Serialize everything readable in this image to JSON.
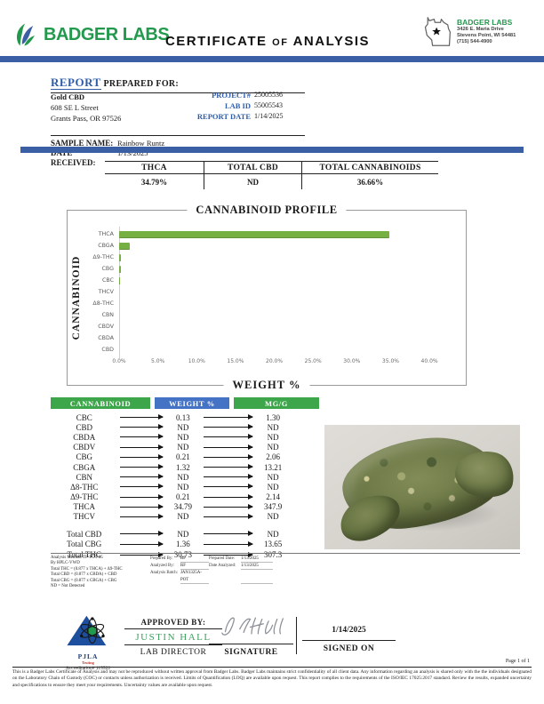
{
  "colors": {
    "brand_green": "#23994d",
    "bar_green": "#76b043",
    "heading_blue": "#2f5cab",
    "divider_blue": "#3b5fa5",
    "table_header_blue": "#4472c4",
    "table_header_green": "#3da54a"
  },
  "header": {
    "brand": "BADGER LABS",
    "title_word1": "CERTIFICATE",
    "title_of": "OF",
    "title_word2": "ANALYSIS",
    "lab_name": "BADGER LABS",
    "lab_address1": "3426 E. Maria Drive",
    "lab_address2": "Stevens Point, WI 54481",
    "lab_phone": "(715) 544-4900"
  },
  "report": {
    "heading": "REPORT",
    "heading_suffix": " PREPARED FOR:",
    "client": {
      "name": "Gold CBD",
      "address1": "608 SE L Street",
      "address2": "Grants Pass, OR 97526"
    },
    "meta": {
      "project_label": "PROJECT#",
      "project": "25005536",
      "lab_id_label": "LAB ID",
      "lab_id": "55005543",
      "date_label": "REPORT DATE",
      "date": "1/14/2025"
    },
    "sample": {
      "name_label": "SAMPLE NAME:",
      "name": "Rainbow Runtz",
      "received_label": "DATE RECEIVED:",
      "received": "1/13/2025"
    }
  },
  "summary": {
    "items": [
      {
        "label": "THCA",
        "value": "34.79%"
      },
      {
        "label": "TOTAL CBD",
        "value": "ND"
      },
      {
        "label": "TOTAL CANNABINOIDS",
        "value": "36.66%"
      }
    ]
  },
  "chart_data": {
    "type": "bar",
    "orientation": "horizontal",
    "title": "CANNABINOID PROFILE",
    "xlabel": "WEIGHT %",
    "ylabel": "CANNABINOID",
    "categories": [
      "THCA",
      "CBGA",
      "Δ9-THC",
      "CBG",
      "CBC",
      "THCV",
      "Δ8-THC",
      "CBN",
      "CBDV",
      "CBDA",
      "CBD"
    ],
    "values": [
      34.79,
      1.32,
      0.21,
      0.21,
      0.13,
      0,
      0,
      0,
      0,
      0,
      0
    ],
    "xlim": [
      0,
      40
    ],
    "x_ticks": [
      "0.0%",
      "5.0%",
      "10.0%",
      "15.0%",
      "20.0%",
      "25.0%",
      "30.0%",
      "35.0%",
      "40.0%"
    ],
    "grid": false,
    "legend": false,
    "bar_color": "#76b043"
  },
  "cannabinoid_table": {
    "headers": [
      "CANNABINOID",
      "WEIGHT %",
      "MG/G"
    ],
    "rows": [
      [
        "CBC",
        "0.13",
        "1.30"
      ],
      [
        "CBD",
        "ND",
        "ND"
      ],
      [
        "CBDA",
        "ND",
        "ND"
      ],
      [
        "CBDV",
        "ND",
        "ND"
      ],
      [
        "CBG",
        "0.21",
        "2.06"
      ],
      [
        "CBGA",
        "1.32",
        "13.21"
      ],
      [
        "CBN",
        "ND",
        "ND"
      ],
      [
        "Δ8-THC",
        "ND",
        "ND"
      ],
      [
        "Δ9-THC",
        "0.21",
        "2.14"
      ],
      [
        "THCA",
        "34.79",
        "347.9"
      ],
      [
        "THCV",
        "ND",
        "ND"
      ]
    ],
    "totals": [
      [
        "Total CBD",
        "ND",
        "ND"
      ],
      [
        "Total CBG",
        "1.36",
        "13.65"
      ],
      [
        "Total THC",
        "30.73",
        "307.3"
      ]
    ]
  },
  "methods": {
    "left": [
      "Analysis Method: TP-POT-05",
      "By HPLC-VWD",
      "Total THC = (0.877 x THCA) + Δ9-THC",
      "Total CBD = (0.877 x CBDA) + CBD",
      "Total CBG = (0.877 x CBGA) + CBG",
      "ND = Not Detected"
    ],
    "pairs": [
      {
        "label": "Prepared By:",
        "value": "RF",
        "label2": "Prepared Date:",
        "value2": "1/13/2025"
      },
      {
        "label": "Analyzed By:",
        "value": "RF",
        "label2": "Date Analyzed:",
        "value2": "1/13/2025"
      },
      {
        "label": "Analysis Batch:",
        "value": "JAN1325A-POT",
        "label2": "",
        "value2": ""
      }
    ]
  },
  "approval": {
    "approved_by_label": "APPROVED BY:",
    "approver": "JUSTIN HALL",
    "approver_title": "LAB DIRECTOR",
    "signature_label": "SIGNATURE",
    "signed_on_label": "SIGNED ON",
    "signed_on_date": "1/14/2025",
    "accreditation_org": "PJLA",
    "accreditation_sub": "Testing",
    "accreditation_number": "Accreditation# 115522"
  },
  "footer": {
    "page": "Page 1 of 1",
    "disclaimer": "This is a Badger Labs Certificate of Analysis and may not be reproduced without written approval from Badger Labs. Badger Labs maintains strict confidentiality of all client data. Any information regarding an analysis is shared only with the the individuals designated on the Laboratory Chain of Custody (COC) or contacts unless authorization is received. Limits of Quantification (LOQ) are available upon request. This report complies to the requirements of the ISO/IEC 17025:2017 standard. Review the results, expanded uncertainty and specifications to ensure they meet your requirements. Uncertainty values are available upon request."
  }
}
